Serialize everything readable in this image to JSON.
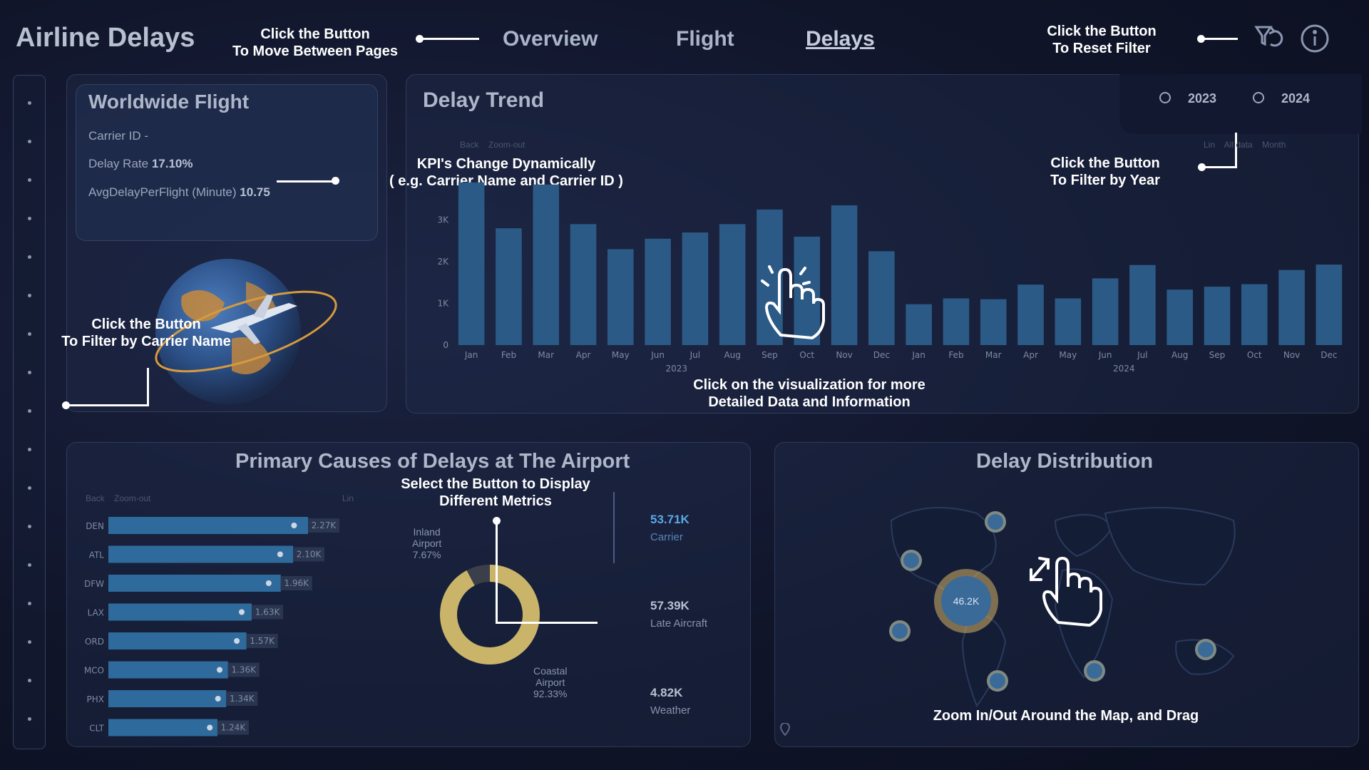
{
  "header": {
    "title": "Airline Delays",
    "nav_note": [
      "Click the Button",
      "To Move Between Pages"
    ],
    "tabs": [
      "Overview",
      "Flight",
      "Delays"
    ],
    "reset_note": [
      "Click the Button",
      "To Reset Filter"
    ]
  },
  "kpi": {
    "title": "Worldwide Flight",
    "carrier_id": "Carrier ID -",
    "delay_rate_label": "Delay Rate",
    "delay_rate_value": "17.10%",
    "avg_delay_label": "AvgDelayPerFlight (Minute)",
    "avg_delay_value": "10.75",
    "note": [
      "KPI's Change Dynamically",
      "( e.g. Carrier Name and Carrier ID )"
    ],
    "carrier_note": [
      "Click the Button",
      "To Filter by Carrier Name"
    ]
  },
  "trend": {
    "title": "Delay Trend",
    "toolbar": [
      "Back",
      "Zoom-out",
      "Lin",
      "All data",
      "Month"
    ],
    "years": [
      "2023",
      "2024"
    ],
    "year_note": [
      "Click the Button",
      "To Filter by Year"
    ],
    "viz_note": [
      "Click on the visualization for more",
      "Detailed Data and Information"
    ]
  },
  "causes": {
    "title": "Primary Causes of Delays at The Airport",
    "toolbar": [
      "Back",
      "Zoom-out",
      "Lin"
    ],
    "metric_note": [
      "Select the Button to Display",
      "Different Metrics"
    ],
    "donut_labels": {
      "inland": [
        "Inland",
        "Airport",
        "7.67%"
      ],
      "coastal": [
        "Coastal",
        "Airport",
        "92.33%"
      ]
    },
    "metrics": [
      {
        "value": "53.71K",
        "name": "Carrier",
        "color": "#5aa9e6"
      },
      {
        "value": "57.39K",
        "name": "Late Aircraft",
        "color": "#b7c0d0"
      },
      {
        "value": "4.82K",
        "name": "Weather",
        "color": "#b7c0d0"
      }
    ]
  },
  "distribution": {
    "title": "Delay Distribution",
    "map_note": "Zoom In/Out Around the Map, and Drag",
    "bubble_main": "46.2K"
  },
  "chart_data": [
    {
      "type": "bar",
      "title": "Delay Trend",
      "categories": [
        "Jan",
        "Feb",
        "Mar",
        "Apr",
        "May",
        "Jun",
        "Jul",
        "Aug",
        "Sep",
        "Oct",
        "Nov",
        "Dec",
        "Jan",
        "Feb",
        "Mar",
        "Apr",
        "May",
        "Jun",
        "Jul",
        "Aug",
        "Sep",
        "Oct",
        "Nov",
        "Dec"
      ],
      "group_labels": [
        "2023",
        "2024"
      ],
      "values": [
        3900,
        2800,
        3850,
        2900,
        2300,
        2550,
        2700,
        2900,
        3250,
        2600,
        3350,
        2250,
        980,
        1120,
        1100,
        1450,
        1120,
        1600,
        1920,
        1330,
        1400,
        1460,
        1800,
        1930
      ],
      "ytick_labels": [
        "0",
        "1K",
        "2K",
        "3K"
      ],
      "ylim": [
        0,
        4000
      ],
      "color": "#2c5a86"
    },
    {
      "type": "bar",
      "orientation": "horizontal",
      "categories": [
        "DEN",
        "ATL",
        "DFW",
        "LAX",
        "ORD",
        "MCO",
        "PHX",
        "CLT"
      ],
      "values": [
        2270,
        2100,
        1960,
        1630,
        1570,
        1360,
        1340,
        1240
      ],
      "data_labels": [
        "2.27K",
        "2.10K",
        "1.96K",
        "1.63K",
        "1.57K",
        "1.36K",
        "1.34K",
        "1.24K"
      ],
      "color": "#2e6b9c"
    },
    {
      "type": "pie",
      "categories": [
        "Inland Airport",
        "Coastal Airport"
      ],
      "values": [
        7.67,
        92.33
      ],
      "colors": [
        "#3a3f4a",
        "#c9b46a"
      ]
    }
  ]
}
